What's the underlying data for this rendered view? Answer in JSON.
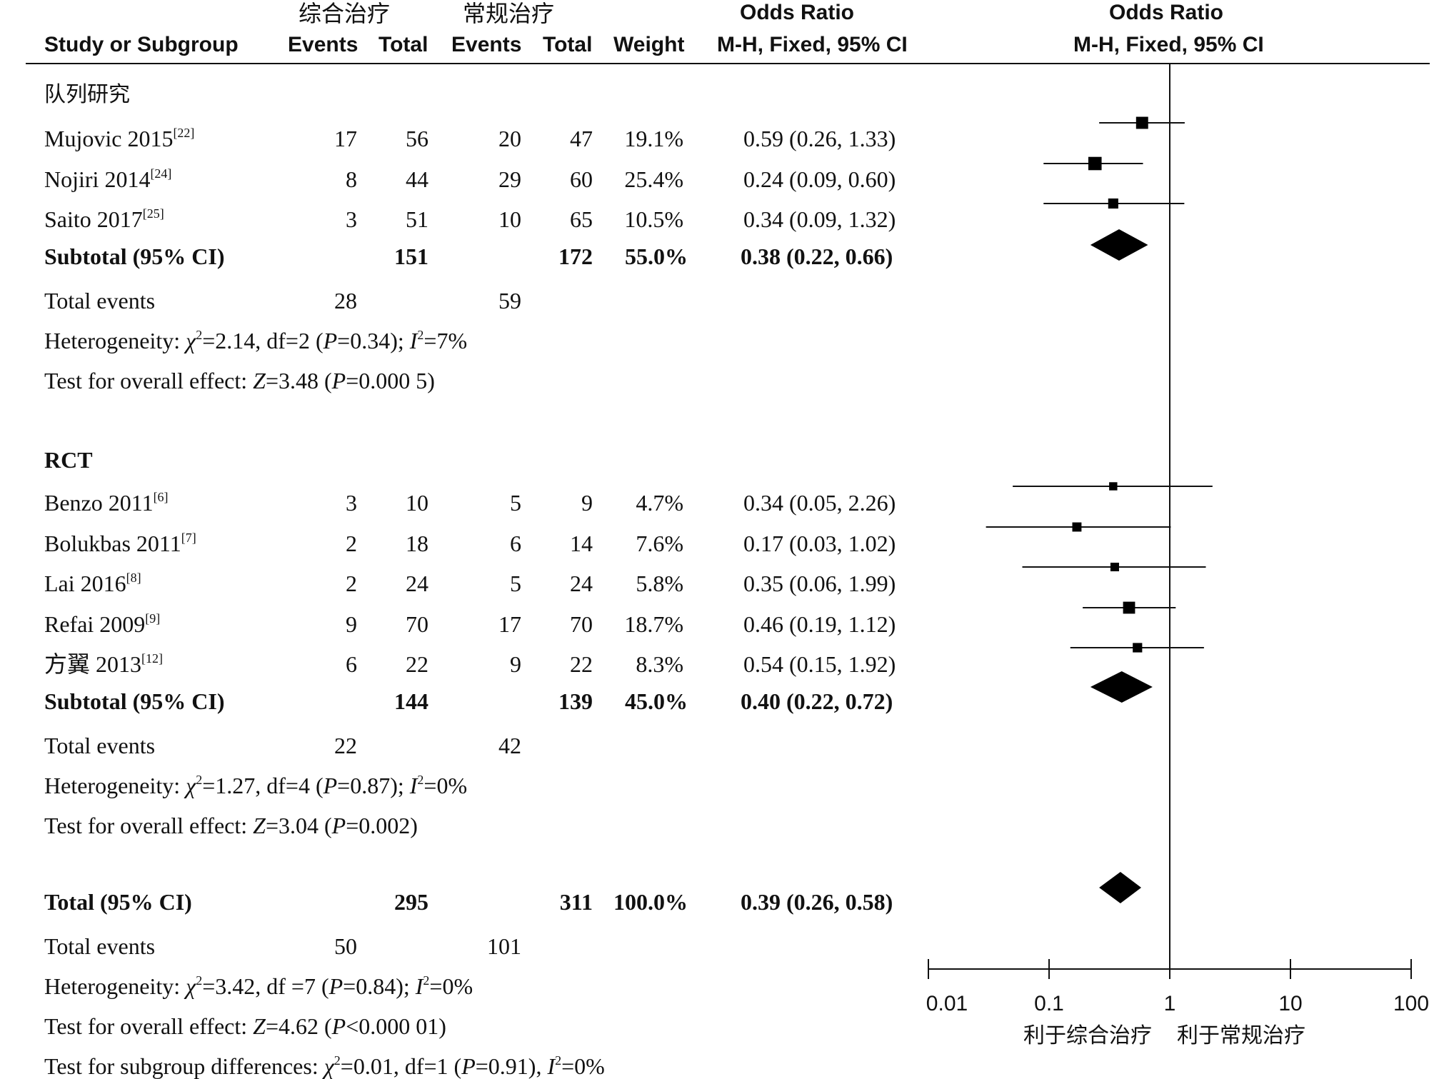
{
  "header": {
    "group1": "综合治疗",
    "group2": "常规治疗",
    "study_col": "Study or Subgroup",
    "events1": "Events",
    "total1": "Total",
    "events2": "Events",
    "total2": "Total",
    "weight": "Weight",
    "or_title": "Odds Ratio",
    "or_method": "M-H, Fixed, 95% CI",
    "plot_title": "Odds Ratio",
    "plot_method": "M-H, Fixed, 95% CI"
  },
  "groups": [
    {
      "name": "队列研究",
      "studies": [
        {
          "study": "Mujovic 2015",
          "ref": "[22]",
          "e1": "17",
          "t1": "56",
          "e2": "20",
          "t2": "47",
          "weight": "19.1%",
          "ci": "0.59 (0.26, 1.33)"
        },
        {
          "study": "Nojiri 2014",
          "ref": "[24]",
          "e1": "8",
          "t1": "44",
          "e2": "29",
          "t2": "60",
          "weight": "25.4%",
          "ci": "0.24 (0.09, 0.60)"
        },
        {
          "study": "Saito 2017",
          "ref": "[25]",
          "e1": "3",
          "t1": "51",
          "e2": "10",
          "t2": "65",
          "weight": "10.5%",
          "ci": "0.34 (0.09, 1.32)"
        }
      ],
      "subtotal": {
        "label": "Subtotal (95% CI)",
        "t1": "151",
        "t2": "172",
        "weight": "55.0%",
        "ci": "0.38 (0.22, 0.66)"
      },
      "total_events": {
        "label": "Total events",
        "e1": "28",
        "e2": "59"
      },
      "heterogeneity": {
        "prefix": "Heterogeneity: ",
        "chi": "χ",
        "chi_rest": "=2.14, df=2 (",
        "p": "P",
        "p_rest": "=0.34); ",
        "i": "I",
        "i_rest": "=7%"
      },
      "overall": {
        "prefix": "Test for overall effect: ",
        "z": "Z",
        "z_rest": "=3.48 (",
        "p": "P",
        "p_rest": "=0.000 5)"
      }
    },
    {
      "name": "RCT",
      "studies": [
        {
          "study": "Benzo 2011",
          "ref": "[6]",
          "e1": "3",
          "t1": "10",
          "e2": "5",
          "t2": "9",
          "weight": "4.7%",
          "ci": "0.34 (0.05, 2.26)"
        },
        {
          "study": "Bolukbas 2011",
          "ref": "[7]",
          "e1": "2",
          "t1": "18",
          "e2": "6",
          "t2": "14",
          "weight": "7.6%",
          "ci": "0.17 (0.03, 1.02)"
        },
        {
          "study": "Lai 2016",
          "ref": "[8]",
          "e1": "2",
          "t1": "24",
          "e2": "5",
          "t2": "24",
          "weight": "5.8%",
          "ci": "0.35 (0.06, 1.99)"
        },
        {
          "study": "Refai 2009",
          "ref": "[9]",
          "e1": "9",
          "t1": "70",
          "e2": "17",
          "t2": "70",
          "weight": "18.7%",
          "ci": "0.46 (0.19, 1.12)"
        },
        {
          "study": "方翼 2013",
          "ref": "[12]",
          "e1": "6",
          "t1": "22",
          "e2": "9",
          "t2": "22",
          "weight": "8.3%",
          "ci": "0.54 (0.15, 1.92)"
        }
      ],
      "subtotal": {
        "label": "Subtotal (95% CI)",
        "t1": "144",
        "t2": "139",
        "weight": "45.0%",
        "ci": "0.40 (0.22, 0.72)"
      },
      "total_events": {
        "label": "Total events",
        "e1": "22",
        "e2": "42"
      },
      "heterogeneity": {
        "prefix": "Heterogeneity: ",
        "chi": "χ",
        "chi_rest": "=1.27, df=4 (",
        "p": "P",
        "p_rest": "=0.87); ",
        "i": "I",
        "i_rest": "=0%"
      },
      "overall": {
        "prefix": "Test for overall effect: ",
        "z": "Z",
        "z_rest": "=3.04 (",
        "p": "P",
        "p_rest": "=0.002)"
      }
    }
  ],
  "total": {
    "label": "Total (95% CI)",
    "t1": "295",
    "t2": "311",
    "weight": "100.0%",
    "ci": "0.39 (0.26, 0.58)",
    "total_events": {
      "label": "Total events",
      "e1": "50",
      "e2": "101"
    },
    "heterogeneity": {
      "prefix": "Heterogeneity: ",
      "chi": "χ",
      "chi_rest": "=3.42, df =7 (",
      "p": "P",
      "p_rest": "=0.84); ",
      "i": "I",
      "i_rest": "=0%"
    },
    "overall": {
      "prefix": "Test for overall effect: ",
      "z": "Z",
      "z_rest": "=4.62 (",
      "p": "P",
      "p_rest": "<0.000 01)"
    },
    "subgroup": {
      "prefix": "Test for subgroup differences: ",
      "chi": "χ",
      "chi_rest": "=0.01, df=1 (",
      "p": "P",
      "p_rest": "=0.91), ",
      "i": "I",
      "i_rest": "=0%"
    }
  },
  "chart_data": {
    "type": "scatter",
    "subtype": "forest-plot",
    "title": "Odds Ratio",
    "subtitle": "M-H, Fixed, 95% CI",
    "x_scale": "log",
    "xlim": [
      0.01,
      100
    ],
    "x_ticks": [
      "0.01",
      "0.1",
      "1",
      "10",
      "100"
    ],
    "x_tick_values": [
      0.01,
      0.1,
      1,
      10,
      100
    ],
    "reference_line": 1,
    "favours_left": "利于综合治疗",
    "favours_right": "利于常规治疗",
    "studies": [
      {
        "study": "Mujovic 2015",
        "or": 0.59,
        "lo": 0.26,
        "hi": 1.33,
        "weight": 19.1
      },
      {
        "study": "Nojiri 2014",
        "or": 0.24,
        "lo": 0.09,
        "hi": 0.6,
        "weight": 25.4
      },
      {
        "study": "Saito 2017",
        "or": 0.34,
        "lo": 0.09,
        "hi": 1.32,
        "weight": 10.5
      },
      {
        "study": "Benzo 2011",
        "or": 0.34,
        "lo": 0.05,
        "hi": 2.26,
        "weight": 4.7
      },
      {
        "study": "Bolukbas 2011",
        "or": 0.17,
        "lo": 0.03,
        "hi": 1.02,
        "weight": 7.6
      },
      {
        "study": "Lai 2016",
        "or": 0.35,
        "lo": 0.06,
        "hi": 1.99,
        "weight": 5.8
      },
      {
        "study": "Refai 2009",
        "or": 0.46,
        "lo": 0.19,
        "hi": 1.12,
        "weight": 18.7
      },
      {
        "study": "方翼 2013",
        "or": 0.54,
        "lo": 0.15,
        "hi": 1.92,
        "weight": 8.3
      }
    ],
    "summaries": [
      {
        "label": "Subtotal (95% CI)",
        "or": 0.38,
        "lo": 0.22,
        "hi": 0.66
      },
      {
        "label": "Subtotal (95% CI)",
        "or": 0.4,
        "lo": 0.22,
        "hi": 0.72
      },
      {
        "label": "Total (95% CI)",
        "or": 0.39,
        "lo": 0.26,
        "hi": 0.58
      }
    ]
  }
}
